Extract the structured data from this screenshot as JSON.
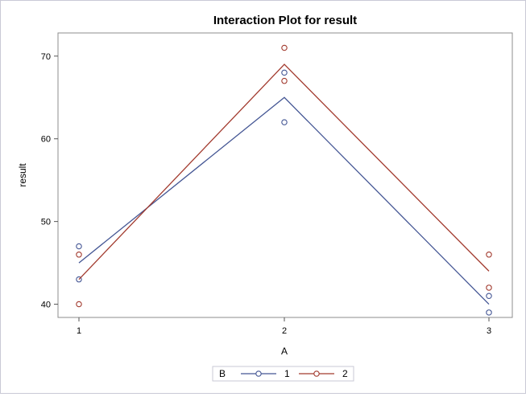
{
  "chart_data": {
    "type": "line",
    "title": "Interaction Plot for result",
    "xlabel": "A",
    "ylabel": "result",
    "categories": [
      "1",
      "2",
      "3"
    ],
    "yticks": [
      40,
      50,
      60,
      70
    ],
    "ylim": [
      38.4,
      72.8
    ],
    "grid": false,
    "legend": {
      "title": "B",
      "placement": "bottom-center"
    },
    "series": [
      {
        "name": "1",
        "color": "#445694",
        "means": [
          45,
          65,
          40
        ],
        "observations": [
          [
            47,
            43
          ],
          [
            68,
            62
          ],
          [
            41,
            39
          ]
        ]
      },
      {
        "name": "2",
        "color": "#a23a2e",
        "means": [
          43,
          69,
          44
        ],
        "observations": [
          [
            46,
            40
          ],
          [
            71,
            67
          ],
          [
            46,
            42
          ]
        ]
      }
    ]
  }
}
